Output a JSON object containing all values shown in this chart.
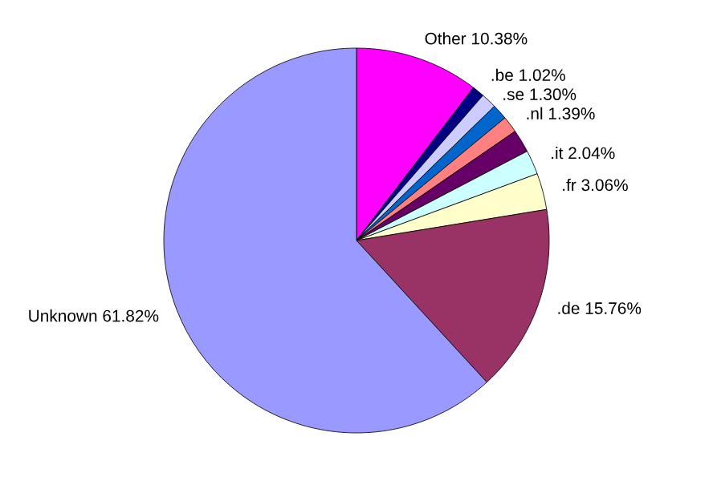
{
  "chart_data": {
    "type": "pie",
    "categories": [
      "Other",
      ".be",
      ".se",
      null,
      ".nl",
      null,
      ".it",
      ".fr",
      ".de",
      "Unknown"
    ],
    "values": [
      10.38,
      1.02,
      1.3,
      1.3,
      1.39,
      1.93,
      2.04,
      3.06,
      15.76,
      61.82
    ],
    "value_labels": [
      "10.38%",
      "1.02%",
      "1.30%",
      null,
      "1.39%",
      null,
      "2.04%",
      "3.06%",
      "15.76%",
      "61.82%"
    ],
    "colors": [
      "#ff00ff",
      "#000080",
      "#ccccff",
      "#0066cc",
      "#ff8080",
      "#660066",
      "#ccffff",
      "#ffffcc",
      "#993366",
      "#9999ff"
    ],
    "legend": false
  }
}
